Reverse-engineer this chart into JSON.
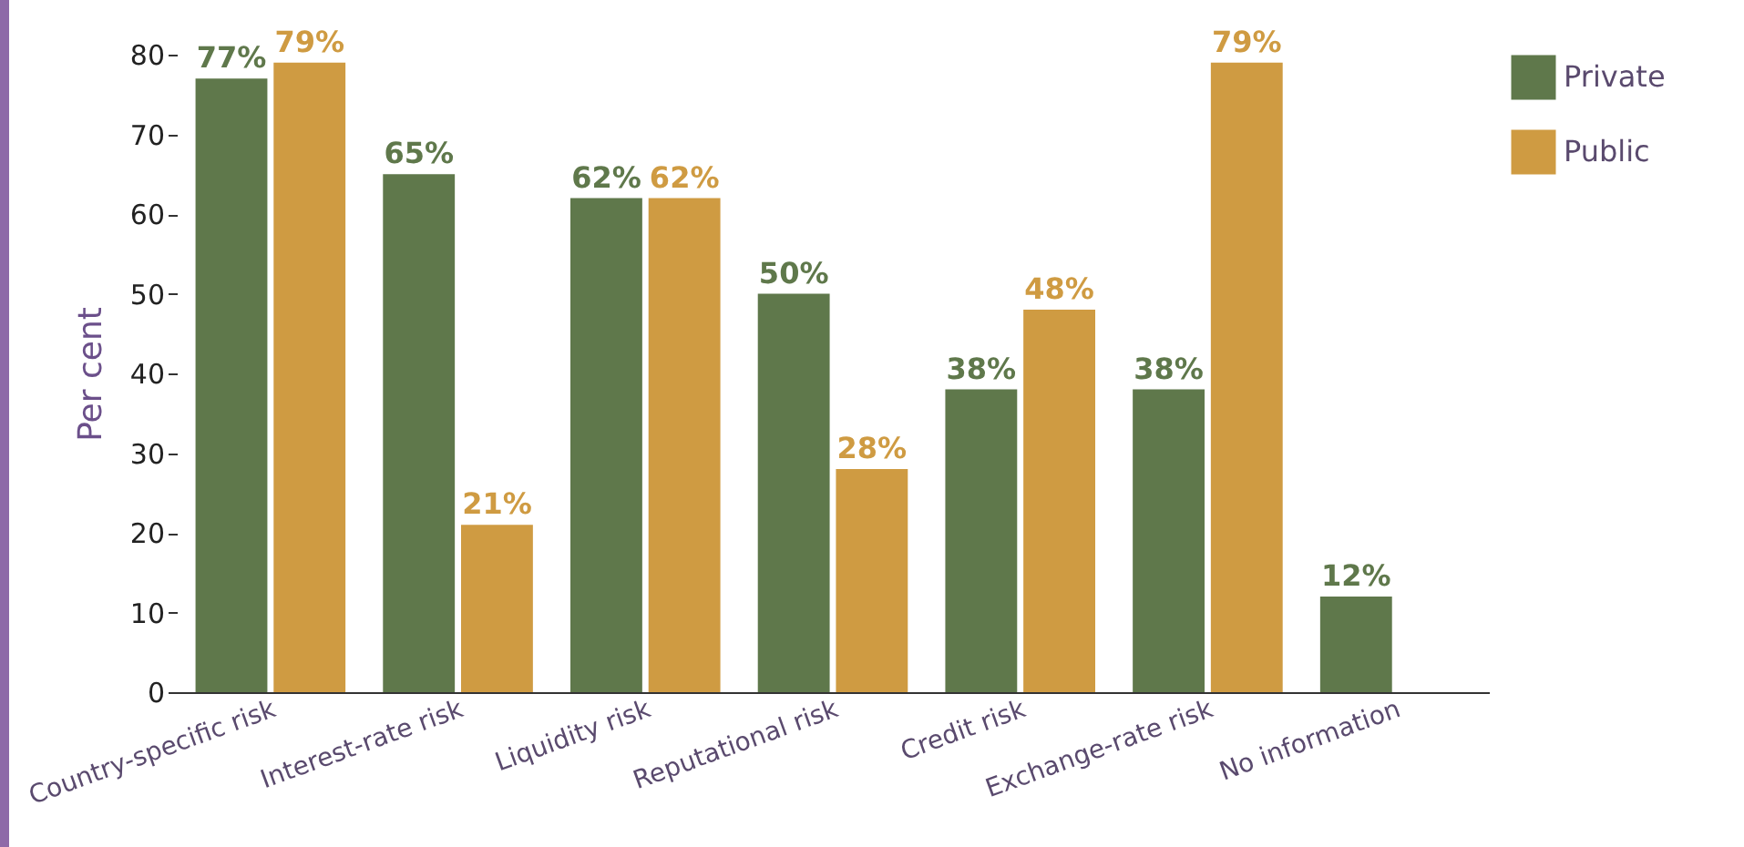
{
  "chart_data": {
    "type": "bar",
    "ylabel": "Per cent",
    "categories": [
      "Country-specific risk",
      "Interest-rate risk",
      "Liquidity risk",
      "Reputational risk",
      "Credit risk",
      "Exchange-rate risk",
      "No information"
    ],
    "series": [
      {
        "name": "Private",
        "color": "#5f784b",
        "values": [
          77,
          65,
          62,
          50,
          38,
          38,
          12
        ],
        "value_labels": [
          "77%",
          "65%",
          "62%",
          "50%",
          "38%",
          "38%",
          "12%"
        ]
      },
      {
        "name": "Public",
        "color": "#cf9b42",
        "values": [
          79,
          21,
          62,
          28,
          48,
          79,
          null
        ],
        "value_labels": [
          "79%",
          "21%",
          "62%",
          "28%",
          "48%",
          "79%",
          null
        ]
      }
    ],
    "ylim": [
      0,
      80
    ],
    "yticks": [
      0,
      10,
      20,
      30,
      40,
      50,
      60,
      70,
      80
    ],
    "grid": false,
    "legend": "top right"
  }
}
